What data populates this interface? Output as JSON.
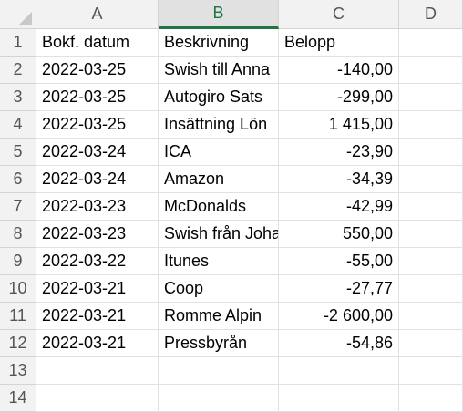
{
  "columns": [
    "A",
    "B",
    "C",
    "D"
  ],
  "row_numbers": [
    "1",
    "2",
    "3",
    "4",
    "5",
    "6",
    "7",
    "8",
    "9",
    "10",
    "11",
    "12",
    "13",
    "14"
  ],
  "rows": [
    {
      "a": "Bokf. datum",
      "b": "Beskrivning",
      "c": "Belopp"
    },
    {
      "a": "2022-03-25",
      "b": "Swish till Anna",
      "c": "-140,00"
    },
    {
      "a": "2022-03-25",
      "b": "Autogiro Sats",
      "c": "-299,00"
    },
    {
      "a": "2022-03-25",
      "b": "Insättning Lön",
      "c": "1 415,00"
    },
    {
      "a": "2022-03-24",
      "b": "ICA",
      "c": "-23,90"
    },
    {
      "a": "2022-03-24",
      "b": "Amazon",
      "c": "-34,39"
    },
    {
      "a": "2022-03-23",
      "b": "McDonalds",
      "c": "-42,99"
    },
    {
      "a": "2022-03-23",
      "b": "Swish från Johan",
      "c": "550,00"
    },
    {
      "a": "2022-03-22",
      "b": "Itunes",
      "c": "-55,00"
    },
    {
      "a": "2022-03-21",
      "b": "Coop",
      "c": "-27,77"
    },
    {
      "a": "2022-03-21",
      "b": "Romme Alpin",
      "c": "-2 600,00"
    },
    {
      "a": "2022-03-21",
      "b": "Pressbyrån",
      "c": "-54,86"
    },
    {
      "a": "",
      "b": "",
      "c": ""
    },
    {
      "a": "",
      "b": "",
      "c": ""
    }
  ],
  "selected_column": "B",
  "accent_color": "#217346"
}
